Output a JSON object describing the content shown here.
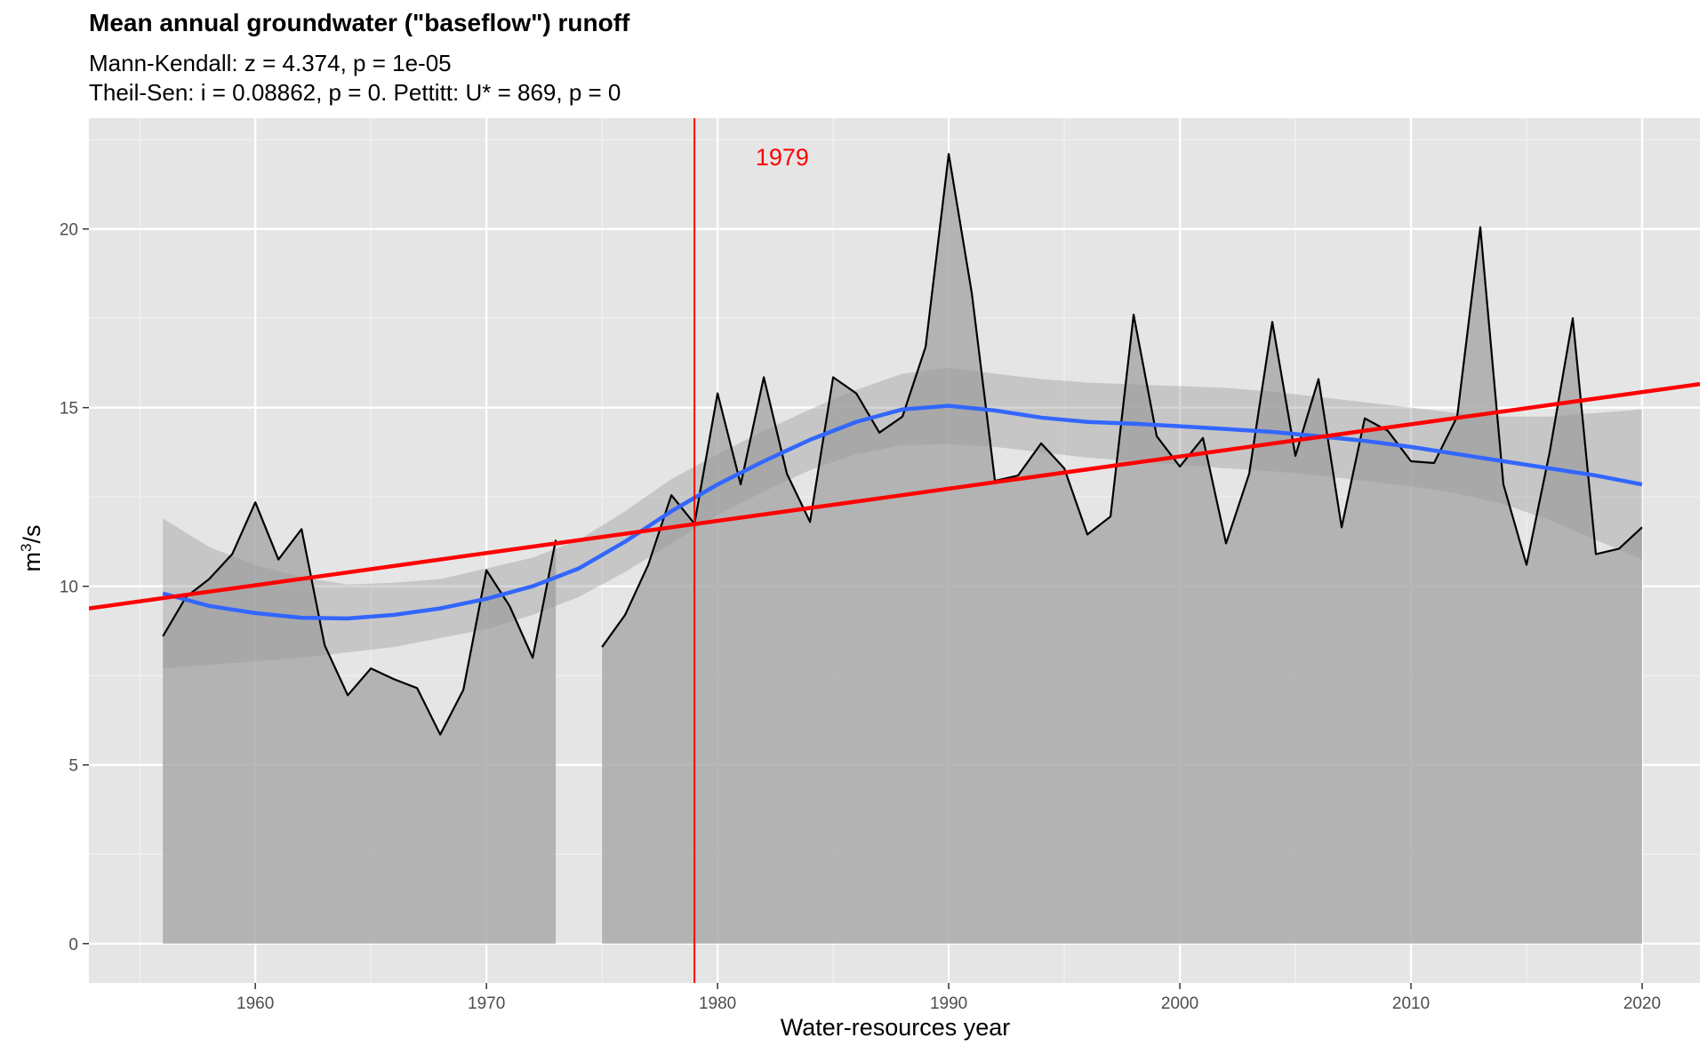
{
  "chart_data": {
    "type": "line",
    "title": "Mean annual groundwater (\"baseflow\") runoff",
    "subtitle_lines": [
      "Mann-Kendall: z = 4.374, p = 1e-05",
      "Theil-Sen: i = 0.08862, p = 0. Pettitt: U* = 869, p = 0"
    ],
    "xlabel": "Water-resources year",
    "ylabel": {
      "base": "m",
      "sup": "3",
      "rest": "/s"
    },
    "xlim": [
      1952.8,
      2022.5
    ],
    "ylim": [
      -1.1,
      23.1
    ],
    "x_ticks": [
      1960,
      1970,
      1980,
      1990,
      2000,
      2010,
      2020
    ],
    "y_ticks": [
      0,
      5,
      10,
      15,
      20
    ],
    "grid": true,
    "series": [
      {
        "type": "line-with-area",
        "color": "#000000",
        "fill": "#aaaaaa",
        "segments": [
          {
            "x": [
              1956,
              1957,
              1958,
              1959,
              1960,
              1961,
              1962,
              1963,
              1964,
              1965,
              1966,
              1967,
              1968,
              1969,
              1970,
              1971,
              1972,
              1973
            ],
            "y": [
              8.6,
              9.7,
              10.2,
              10.9,
              12.35,
              10.75,
              11.6,
              8.35,
              6.95,
              7.7,
              7.4,
              7.15,
              5.85,
              7.1,
              10.45,
              9.45,
              8.0,
              11.3
            ]
          },
          {
            "x": [
              1975,
              1976,
              1977,
              1978,
              1979,
              1980,
              1981,
              1982,
              1983,
              1984,
              1985,
              1986,
              1987,
              1988,
              1989,
              1990,
              1991,
              1992,
              1993,
              1994,
              1995,
              1996,
              1997,
              1998,
              1999,
              2000,
              2001,
              2002,
              2003,
              2004,
              2005,
              2006,
              2007,
              2008,
              2009,
              2010,
              2011,
              2012,
              2013,
              2014,
              2015,
              2016,
              2017,
              2018,
              2019,
              2020
            ],
            "y": [
              8.3,
              9.2,
              10.6,
              12.55,
              11.75,
              15.4,
              12.85,
              15.85,
              13.15,
              11.8,
              15.85,
              15.4,
              14.3,
              14.75,
              16.7,
              22.1,
              18.2,
              12.95,
              13.1,
              14.0,
              13.3,
              11.45,
              11.95,
              17.6,
              14.2,
              13.35,
              14.15,
              11.2,
              13.15,
              17.4,
              13.65,
              15.8,
              11.65,
              14.7,
              14.35,
              13.5,
              13.45,
              14.75,
              20.05,
              12.85,
              10.6,
              13.75,
              17.5,
              10.9,
              11.05,
              11.65
            ]
          }
        ]
      },
      {
        "name": "loess",
        "type": "smooth",
        "color": "#3366ff",
        "band_fill": "#c8c8c8",
        "x": [
          1956,
          1958,
          1960,
          1962,
          1964,
          1966,
          1968,
          1970,
          1972,
          1974,
          1976,
          1978,
          1980,
          1982,
          1984,
          1986,
          1988,
          1990,
          1992,
          1994,
          1996,
          1998,
          2000,
          2002,
          2004,
          2006,
          2008,
          2010,
          2012,
          2014,
          2016,
          2018,
          2020
        ],
        "y": [
          9.8,
          9.45,
          9.25,
          9.12,
          9.1,
          9.2,
          9.38,
          9.65,
          10.0,
          10.5,
          11.25,
          12.1,
          12.85,
          13.5,
          14.1,
          14.6,
          14.95,
          15.05,
          14.92,
          14.72,
          14.6,
          14.55,
          14.48,
          14.4,
          14.32,
          14.2,
          14.07,
          13.9,
          13.7,
          13.5,
          13.3,
          13.1,
          12.85
        ],
        "lower": [
          7.7,
          7.8,
          7.9,
          8.0,
          8.15,
          8.3,
          8.55,
          8.8,
          9.2,
          9.7,
          10.4,
          11.2,
          12.0,
          12.65,
          13.25,
          13.7,
          13.95,
          13.98,
          13.9,
          13.75,
          13.6,
          13.5,
          13.4,
          13.3,
          13.22,
          13.1,
          12.95,
          12.8,
          12.6,
          12.3,
          11.85,
          11.3,
          10.75
        ],
        "upper": [
          11.9,
          11.1,
          10.6,
          10.25,
          10.05,
          10.1,
          10.2,
          10.5,
          10.8,
          11.3,
          12.1,
          13.0,
          13.7,
          14.35,
          14.95,
          15.5,
          15.95,
          16.12,
          15.95,
          15.8,
          15.7,
          15.65,
          15.6,
          15.55,
          15.45,
          15.3,
          15.15,
          15.0,
          14.85,
          14.75,
          14.75,
          14.85,
          14.95
        ]
      },
      {
        "name": "Theil-Sen",
        "type": "trend",
        "color": "#ff0000",
        "x": [
          1952.8,
          2022.5
        ],
        "y": [
          9.38,
          15.66
        ]
      }
    ],
    "annotations": [
      {
        "type": "vline",
        "x": 1979,
        "color": "#ff0000",
        "label": "1979",
        "label_x": 1982.8,
        "label_y": 22.0
      }
    ]
  }
}
